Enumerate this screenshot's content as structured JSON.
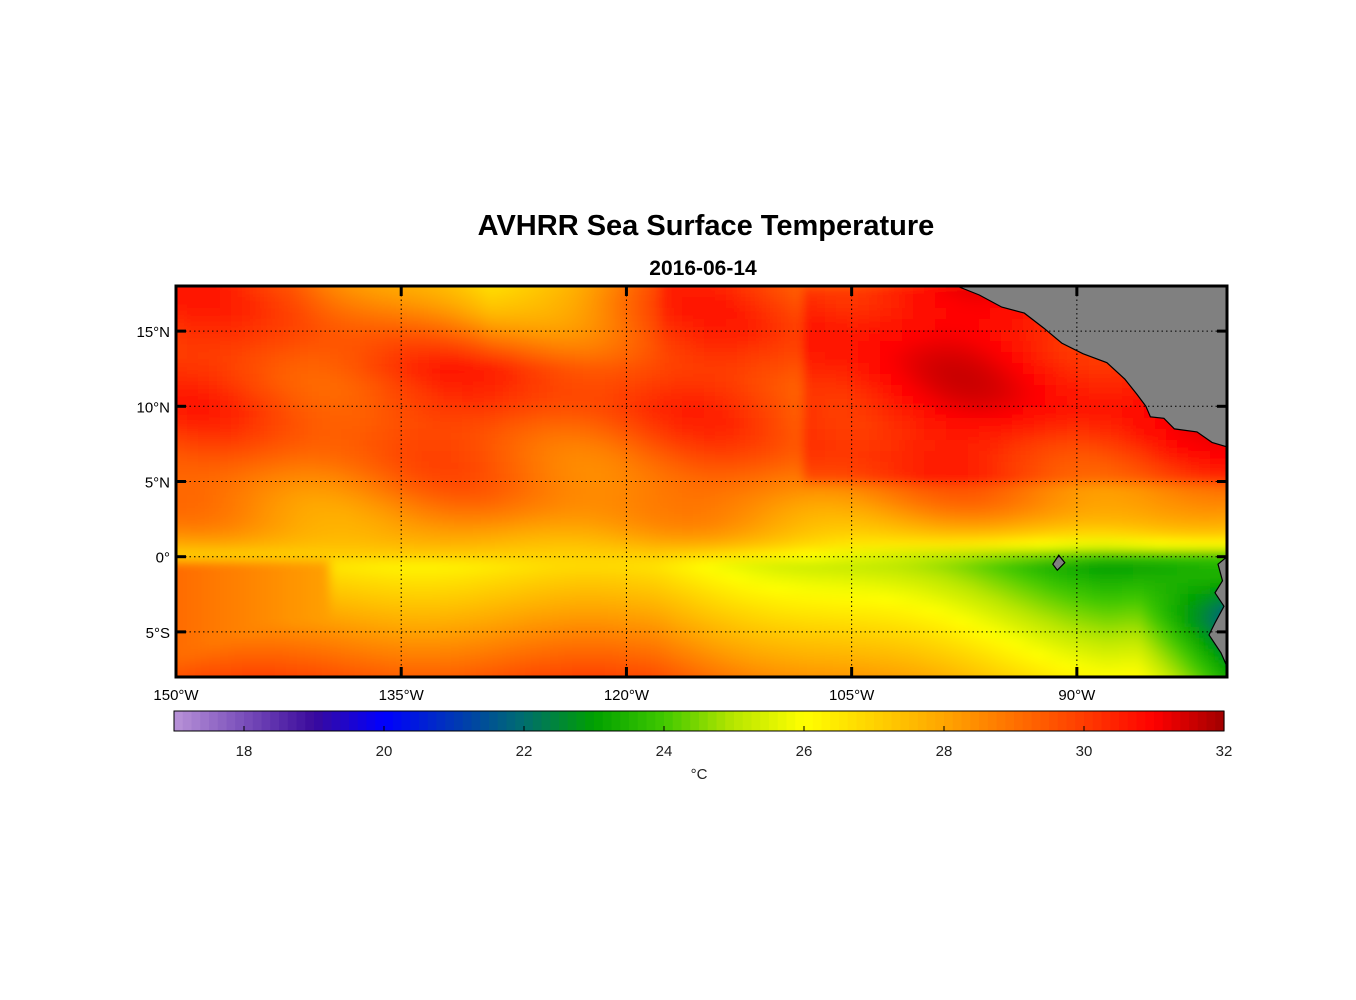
{
  "title": "AVHRR Sea Surface Temperature",
  "subtitle": "2016-06-14",
  "map": {
    "lon_range": [
      -150,
      -80
    ],
    "lat_range": [
      -8,
      18
    ],
    "lon_ticks": [
      {
        "value": -150,
        "label": "150°W"
      },
      {
        "value": -135,
        "label": "135°W"
      },
      {
        "value": -120,
        "label": "120°W"
      },
      {
        "value": -105,
        "label": "105°W"
      },
      {
        "value": -90,
        "label": "90°W"
      }
    ],
    "lat_ticks": [
      {
        "value": 15,
        "label": "15°N"
      },
      {
        "value": 10,
        "label": "10°N"
      },
      {
        "value": 5,
        "label": "5°N"
      },
      {
        "value": 0,
        "label": "0°"
      },
      {
        "value": -5,
        "label": "5°S"
      }
    ],
    "land": [
      {
        "name": "central-america",
        "color": "#808080",
        "outline": [
          [
            -98,
            18
          ],
          [
            -96.5,
            17.4
          ],
          [
            -95,
            16.6
          ],
          [
            -93.5,
            16.2
          ],
          [
            -92.2,
            15.2
          ],
          [
            -91,
            14.2
          ],
          [
            -89.6,
            13.5
          ],
          [
            -88,
            12.9
          ],
          [
            -86.8,
            11.8
          ],
          [
            -86,
            10.8
          ],
          [
            -85.4,
            10
          ],
          [
            -85.1,
            9.3
          ],
          [
            -84.2,
            9.2
          ],
          [
            -83.5,
            8.5
          ],
          [
            -82,
            8.3
          ],
          [
            -81,
            7.6
          ],
          [
            -80,
            7.3
          ],
          [
            -80,
            18
          ]
        ]
      },
      {
        "name": "south-america",
        "color": "#808080",
        "outline": [
          [
            -80,
            0
          ],
          [
            -80.6,
            -0.5
          ],
          [
            -80.3,
            -1.6
          ],
          [
            -80.8,
            -2.4
          ],
          [
            -80.2,
            -3.3
          ],
          [
            -80.8,
            -4.4
          ],
          [
            -81.2,
            -5.2
          ],
          [
            -80.4,
            -6.4
          ],
          [
            -80,
            -7.3
          ]
        ]
      },
      {
        "name": "galapagos",
        "color": "#808080",
        "outline": [
          [
            -91.2,
            0.1
          ],
          [
            -90.8,
            -0.4
          ],
          [
            -91.3,
            -0.9
          ],
          [
            -91.6,
            -0.5
          ]
        ]
      }
    ]
  },
  "colorbar": {
    "min": 17,
    "max": 32,
    "ticks": [
      18,
      20,
      22,
      24,
      26,
      28,
      30,
      32
    ],
    "unit_label": "°C"
  },
  "colors": {
    "palette": [
      [
        17,
        "#b993d8"
      ],
      [
        19,
        "#3a0a9c"
      ],
      [
        20,
        "#0000ff"
      ],
      [
        22,
        "#006e6e"
      ],
      [
        23,
        "#00a000"
      ],
      [
        24,
        "#40c800"
      ],
      [
        25,
        "#b8e600"
      ],
      [
        26,
        "#ffff00"
      ],
      [
        28,
        "#ffa500"
      ],
      [
        30,
        "#ff3c00"
      ],
      [
        31,
        "#ff0000"
      ],
      [
        32,
        "#a00000"
      ]
    ],
    "land": "#808080"
  }
}
